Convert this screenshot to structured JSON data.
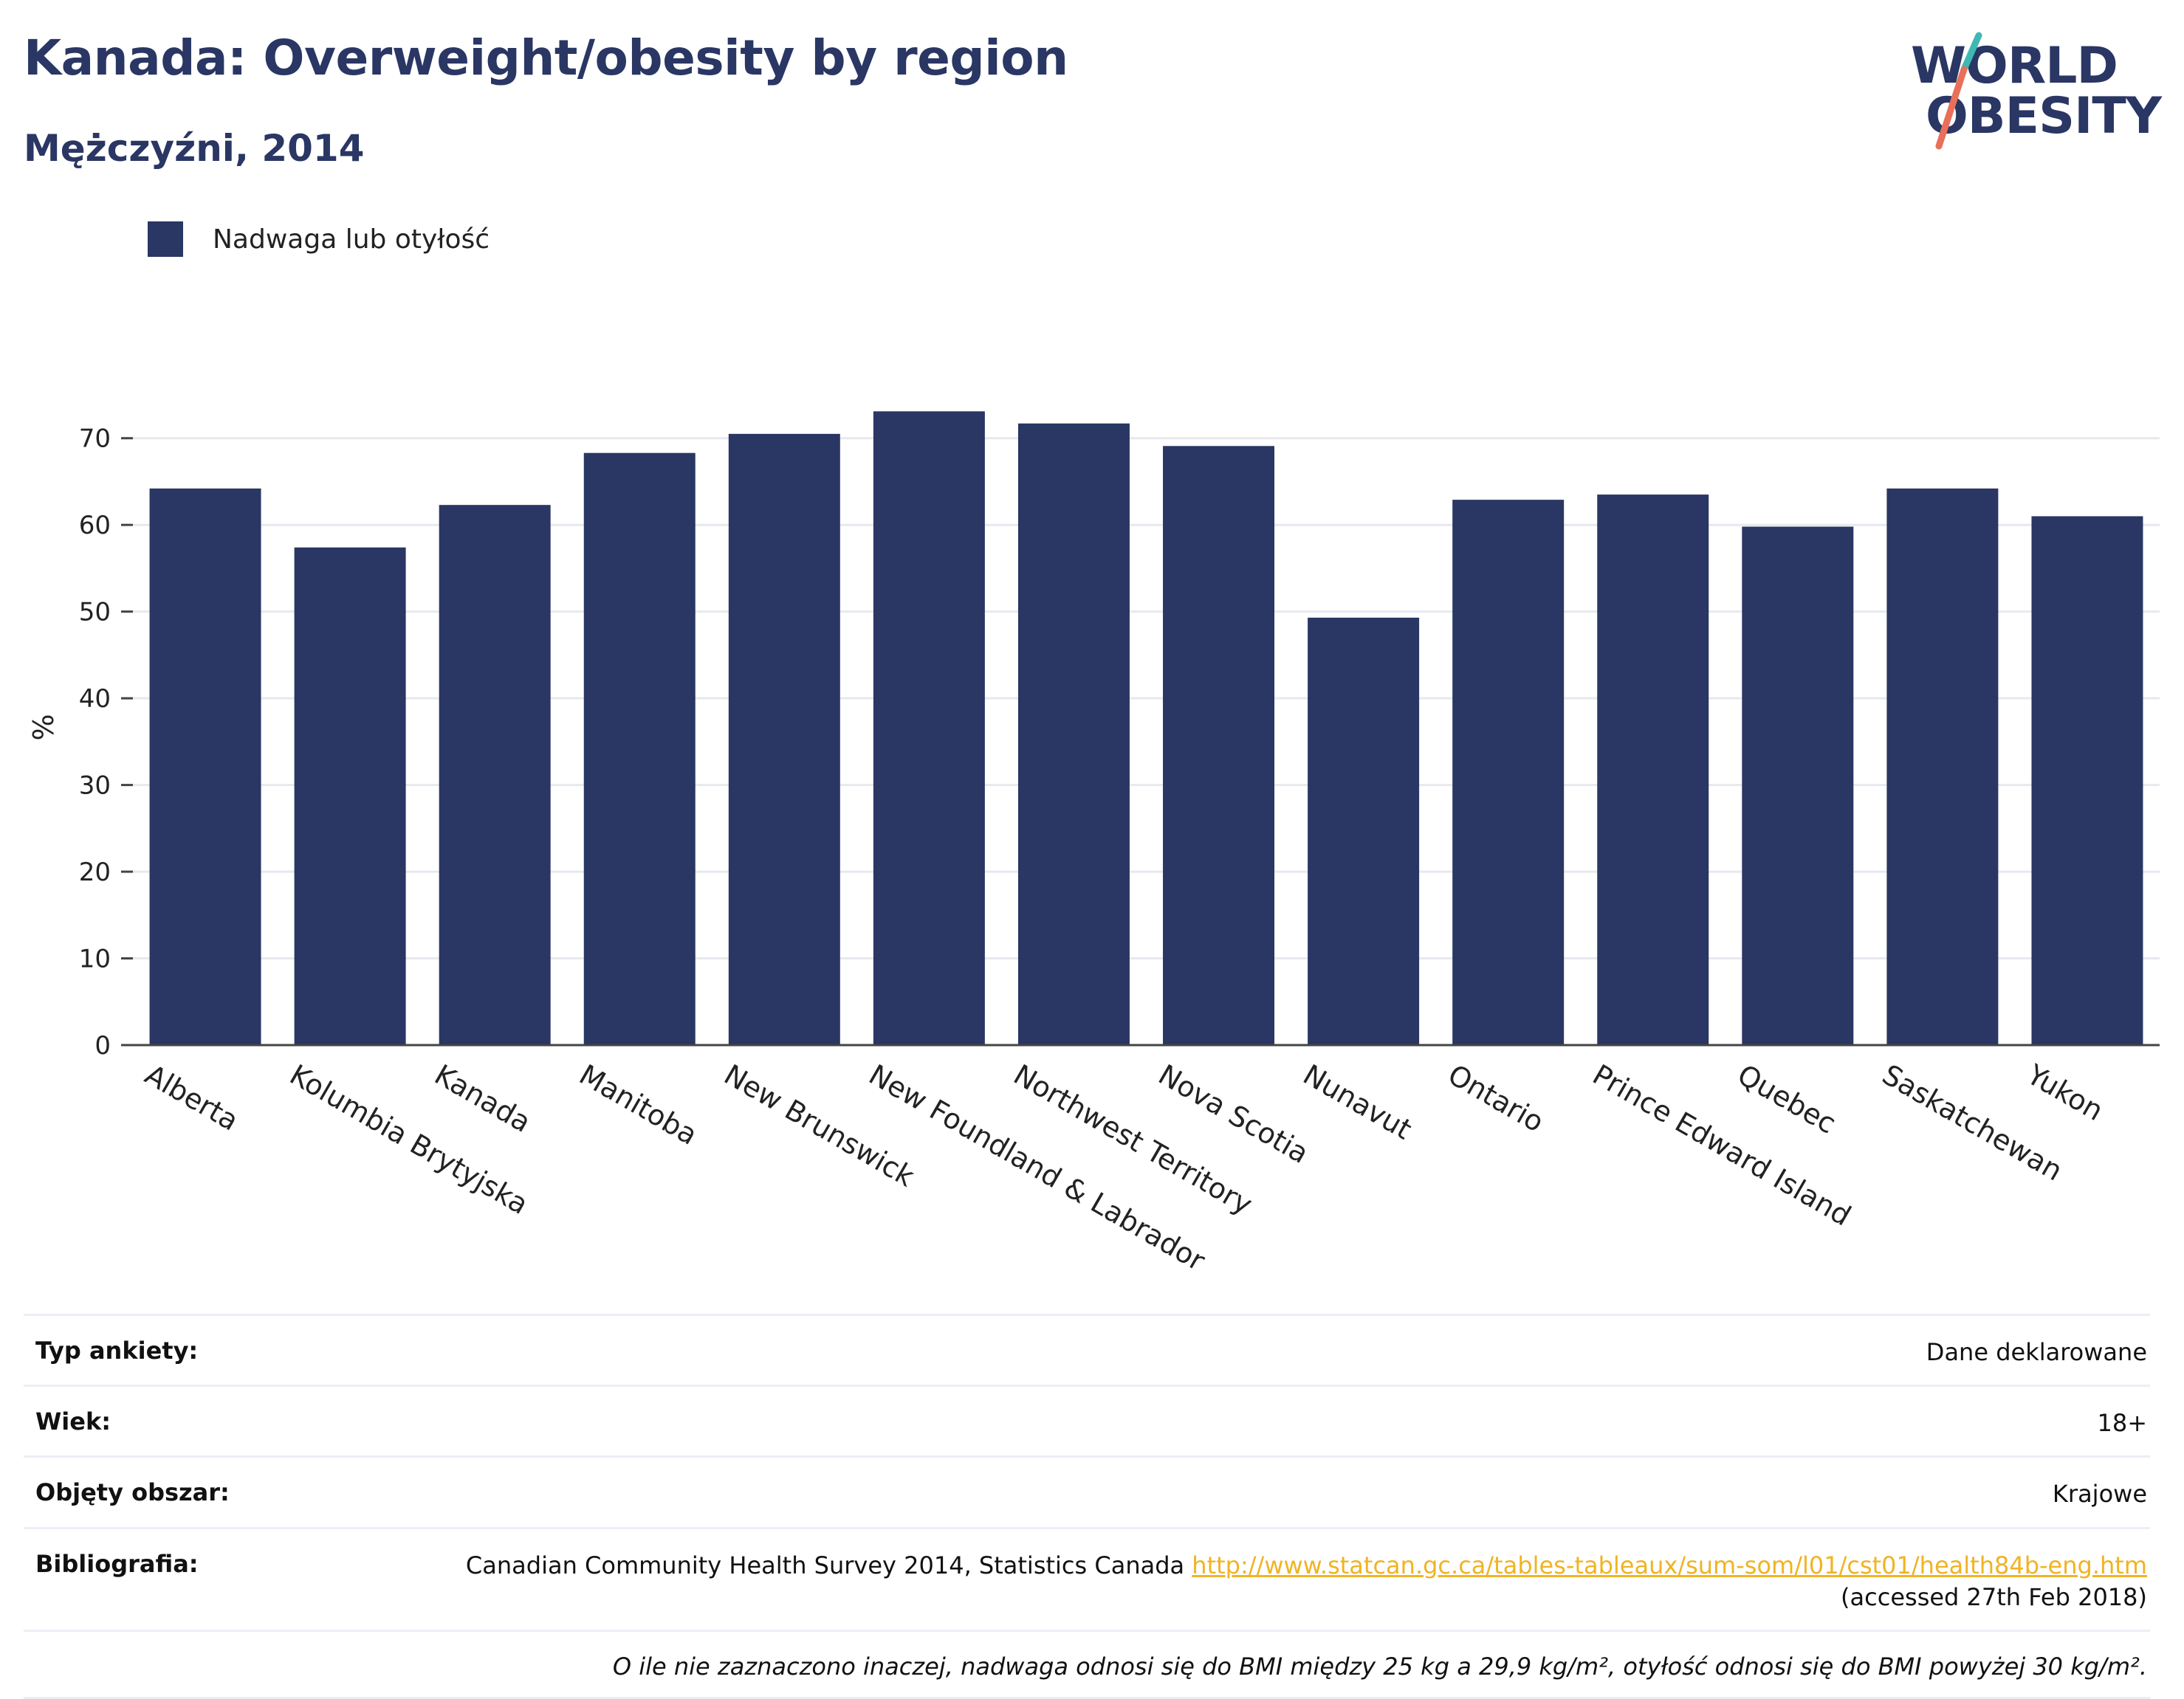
{
  "header": {
    "title": "Kanada: Overweight/obesity by region",
    "subtitle": "Mężczyźni, 2014"
  },
  "logo": {
    "line1": "WORLD",
    "line2": "OBESITY",
    "accent_colors": [
      "#3fb8b2",
      "#e8705a"
    ]
  },
  "legend": {
    "label": "Nadwaga lub otyłość",
    "color": "#2a3663"
  },
  "chart_data": {
    "type": "bar",
    "categories": [
      "Alberta",
      "Kolumbia Brytyjska",
      "Kanada",
      "Manitoba",
      "New Brunswick",
      "New Foundland & Labrador",
      "Northwest Territory",
      "Nova Scotia",
      "Nunavut",
      "Ontario",
      "Prince Edward Island",
      "Quebec",
      "Saskatchewan",
      "Yukon"
    ],
    "series": [
      {
        "name": "Nadwaga lub otyłość",
        "values": [
          64.2,
          57.4,
          62.3,
          68.3,
          70.5,
          73.1,
          71.7,
          69.1,
          49.3,
          62.9,
          63.5,
          59.8,
          64.2,
          61.0
        ]
      }
    ],
    "ylabel": "%",
    "ylim": [
      0,
      75
    ],
    "yticks": [
      0,
      10,
      20,
      30,
      40,
      50,
      60,
      70
    ],
    "grid": true,
    "bar_color": "#2a3663"
  },
  "meta": {
    "survey_type_label": "Typ ankiety:",
    "survey_type_value": "Dane deklarowane",
    "age_label": "Wiek:",
    "age_value": "18+",
    "area_label": "Objęty obszar:",
    "area_value": "Krajowe",
    "biblio_label": "Bibliografia:",
    "biblio_text": "Canadian Community Health Survey 2014, Statistics Canada",
    "biblio_link": "http://www.statcan.gc.ca/tables-tableaux/sum-som/l01/cst01/health84b-eng.htm",
    "biblio_accessed": "(accessed 27th Feb 2018)",
    "note": "O ile nie zaznaczono inaczej, nadwaga odnosi się do BMI między 25 kg a 29,9 kg/m², otyłość odnosi się do BMI powyżej 30 kg/m²."
  }
}
